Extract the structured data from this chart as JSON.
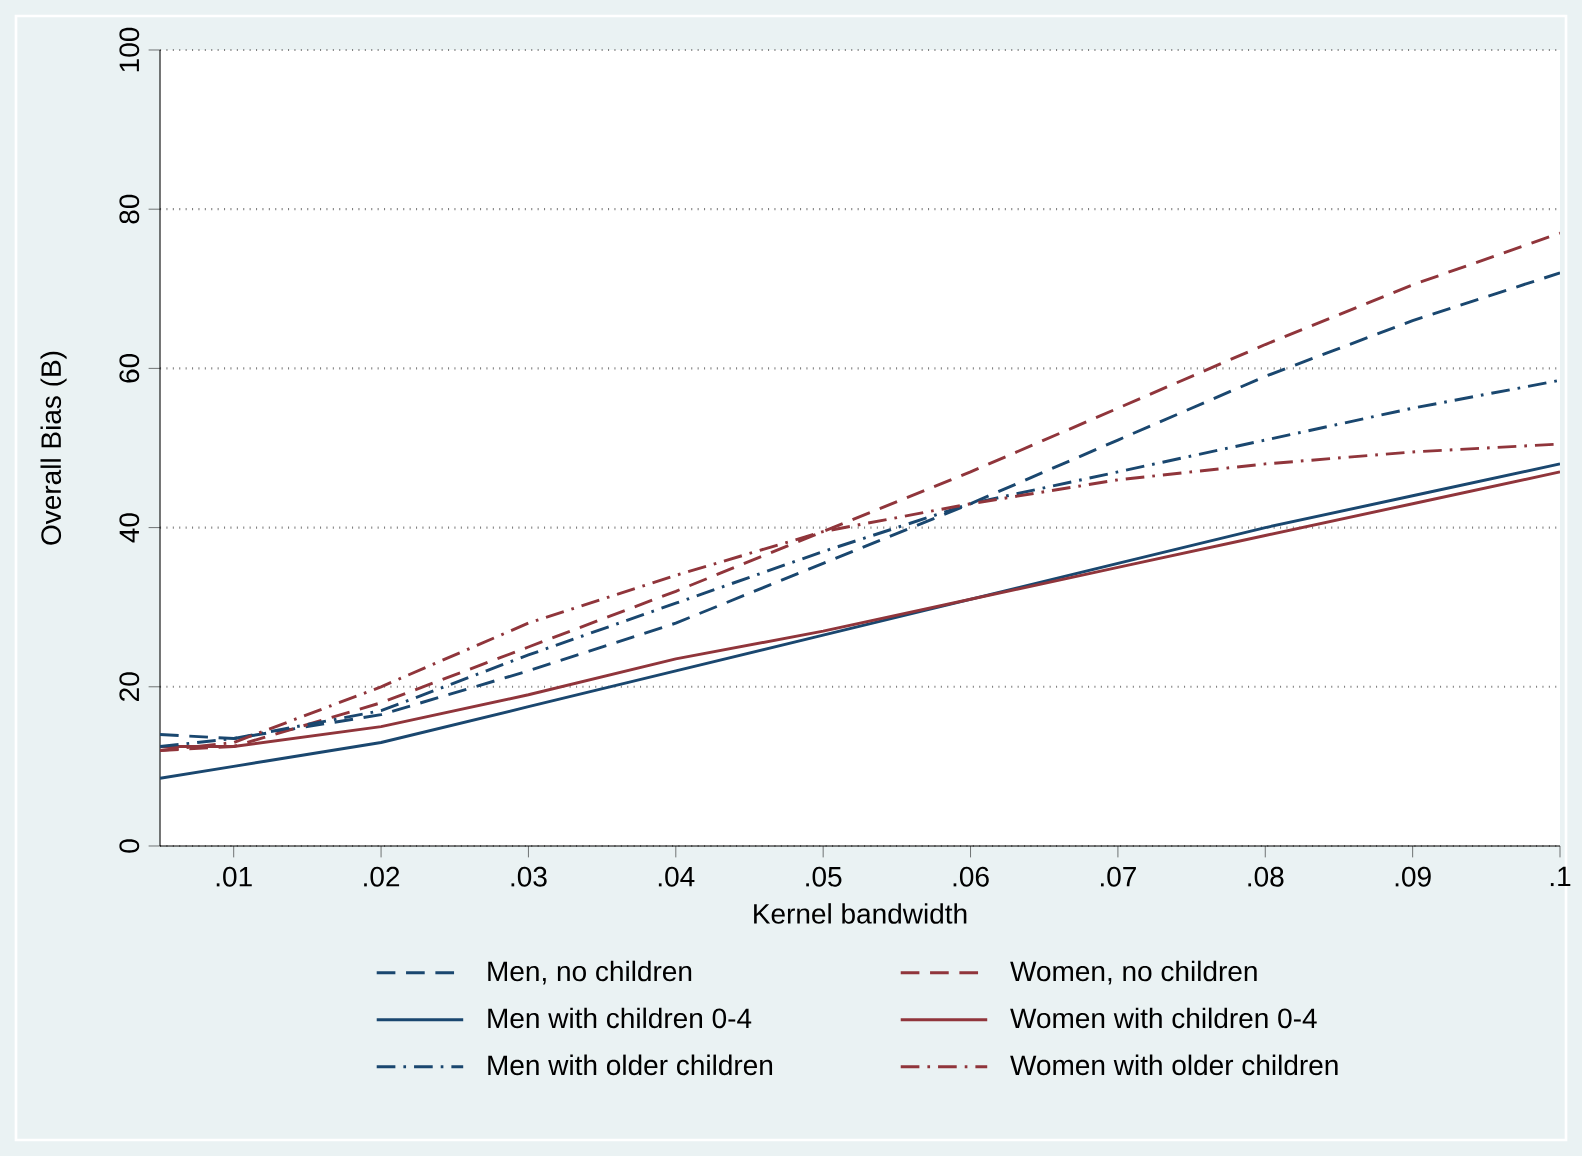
{
  "chart_data": {
    "type": "line",
    "xlabel": "Kernel bandwidth",
    "ylabel": "Overall Bias (B)",
    "x": [
      0.005,
      0.01,
      0.02,
      0.03,
      0.04,
      0.05,
      0.06,
      0.07,
      0.08,
      0.09,
      0.1
    ],
    "series": [
      {
        "name": "Men, no children",
        "color": "#1a476f",
        "line_style": "dashed",
        "values": [
          14,
          13.5,
          16.5,
          22,
          28,
          35.5,
          43,
          51,
          59,
          66,
          72
        ]
      },
      {
        "name": "Women, no children",
        "color": "#90353b",
        "line_style": "dashed",
        "values": [
          12,
          12.5,
          18,
          25,
          32,
          39.5,
          47,
          55,
          63,
          70.5,
          77
        ]
      },
      {
        "name": "Men with children 0-4",
        "color": "#1a476f",
        "line_style": "solid",
        "values": [
          8.5,
          10,
          13,
          17.5,
          22,
          26.5,
          31,
          35.5,
          40,
          44,
          48
        ]
      },
      {
        "name": "Women with children 0-4",
        "color": "#90353b",
        "line_style": "solid",
        "values": [
          12.5,
          12.5,
          15,
          19,
          23.5,
          27,
          31,
          35,
          39,
          43,
          47
        ]
      },
      {
        "name": "Men with older children",
        "color": "#1a476f",
        "line_style": "dashdot",
        "values": [
          12.5,
          13.5,
          17,
          24,
          30.5,
          37,
          43,
          47,
          51,
          55,
          58.5
        ]
      },
      {
        "name": "Women with older children",
        "color": "#90353b",
        "line_style": "dashdot",
        "values": [
          12,
          13,
          20,
          28,
          34,
          39.5,
          43,
          46,
          48,
          49.5,
          50.5
        ]
      }
    ],
    "xlim": [
      0.005,
      0.1
    ],
    "xticks": [
      {
        "value": 0.01,
        "label": ".01"
      },
      {
        "value": 0.02,
        "label": ".02"
      },
      {
        "value": 0.03,
        "label": ".03"
      },
      {
        "value": 0.04,
        "label": ".04"
      },
      {
        "value": 0.05,
        "label": ".05"
      },
      {
        "value": 0.06,
        "label": ".06"
      },
      {
        "value": 0.07,
        "label": ".07"
      },
      {
        "value": 0.08,
        "label": ".08"
      },
      {
        "value": 0.09,
        "label": ".09"
      },
      {
        "value": 0.1,
        "label": ".1"
      }
    ],
    "ylim": [
      0,
      100
    ],
    "yticks": [
      0,
      20,
      40,
      60,
      80,
      100
    ],
    "grid": "y",
    "legend": "bottom",
    "marker": "none"
  }
}
